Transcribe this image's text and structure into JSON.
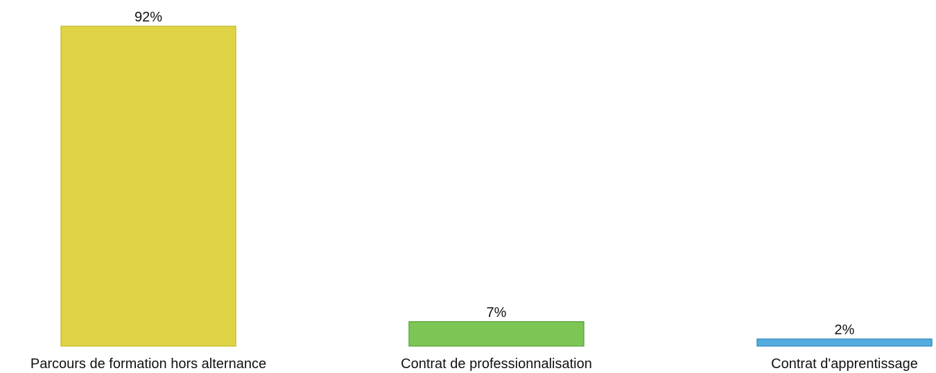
{
  "chart_data": {
    "type": "bar",
    "categories": [
      "Parcours de formation hors alternance",
      "Contrat de professionnalisation",
      "Contrat d'apprentissage"
    ],
    "values": [
      92,
      7,
      2
    ],
    "value_labels": [
      "92%",
      "7%",
      "2%"
    ],
    "ylim": [
      0,
      92
    ],
    "grid": false,
    "colors": [
      "#DED446",
      "#7DC656",
      "#54ACDF"
    ],
    "border_colors": [
      "#C9BF2E",
      "#5FA83E",
      "#3A91C7"
    ]
  }
}
